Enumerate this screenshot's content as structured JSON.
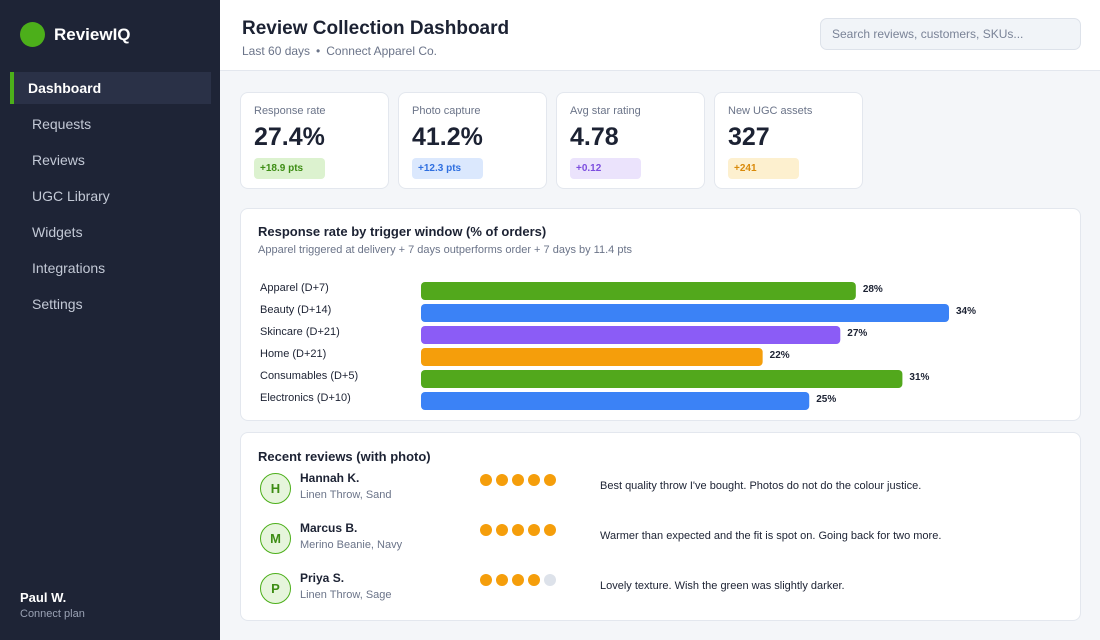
{
  "brand": {
    "name": "ReviewIQ",
    "color": "#4caf1a"
  },
  "sidebar": {
    "items": [
      {
        "label": "Dashboard",
        "active": true
      },
      {
        "label": "Requests"
      },
      {
        "label": "Reviews"
      },
      {
        "label": "UGC Library"
      },
      {
        "label": "Widgets"
      },
      {
        "label": "Integrations"
      },
      {
        "label": "Settings"
      }
    ],
    "user": {
      "name": "Paul W.",
      "plan": "Connect plan"
    }
  },
  "header": {
    "title": "Review Collection Dashboard",
    "period": "Last 60 days",
    "separator": "•",
    "account": "Connect Apparel Co.",
    "search_placeholder": "Search reviews, customers, SKUs..."
  },
  "kpis": [
    {
      "label": "Response rate",
      "value": "27.4%",
      "delta": "+18.9 pts",
      "fg": "#3d8d14",
      "bg": "#dcf2cf"
    },
    {
      "label": "Photo capture",
      "value": "41.2%",
      "delta": "+12.3 pts",
      "fg": "#2f6fe0",
      "bg": "#dbe8fd"
    },
    {
      "label": "Avg star rating",
      "value": "4.78",
      "delta": "+0.12",
      "fg": "#7c4ddf",
      "bg": "#ebe3fc"
    },
    {
      "label": "New UGC assets",
      "value": "327",
      "delta": "+241",
      "fg": "#d98a0a",
      "bg": "#fdf0cf"
    }
  ],
  "chart": {
    "title": "Response rate by trigger window  (% of orders)",
    "subtitle": "Apparel triggered at delivery + 7 days outperforms order + 7 days by 11.4 pts"
  },
  "chart_data": {
    "type": "bar",
    "orientation": "horizontal",
    "categories": [
      "Apparel (D+7)",
      "Beauty (D+14)",
      "Skincare (D+21)",
      "Home (D+21)",
      "Consumables (D+5)",
      "Electronics (D+10)"
    ],
    "values": [
      28,
      34,
      27,
      22,
      31,
      25
    ],
    "labels": [
      "28%",
      "34%",
      "27%",
      "22%",
      "31%",
      "25%"
    ],
    "colors": [
      "#52a81c",
      "#3b82f6",
      "#8b5cf6",
      "#f59e0b",
      "#52a81c",
      "#3b82f6"
    ],
    "unit": "%",
    "xlim": [
      0,
      34
    ],
    "grid": false,
    "title": "Response rate by trigger window  (% of orders)"
  },
  "reviews": {
    "title": "Recent reviews (with photo)",
    "items": [
      {
        "initial": "H",
        "name": "Hannah K.",
        "product": "Linen Throw, Sand",
        "rating": 5,
        "text": "Best quality throw I've bought. Photos do not do the colour justice."
      },
      {
        "initial": "M",
        "name": "Marcus B.",
        "product": "Merino Beanie, Navy",
        "rating": 5,
        "text": "Warmer than expected and the fit is spot on. Going back for two more."
      },
      {
        "initial": "P",
        "name": "Priya S.",
        "product": "Linen Throw, Sage",
        "rating": 4,
        "text": "Lovely texture. Wish the green was slightly darker."
      }
    ]
  }
}
